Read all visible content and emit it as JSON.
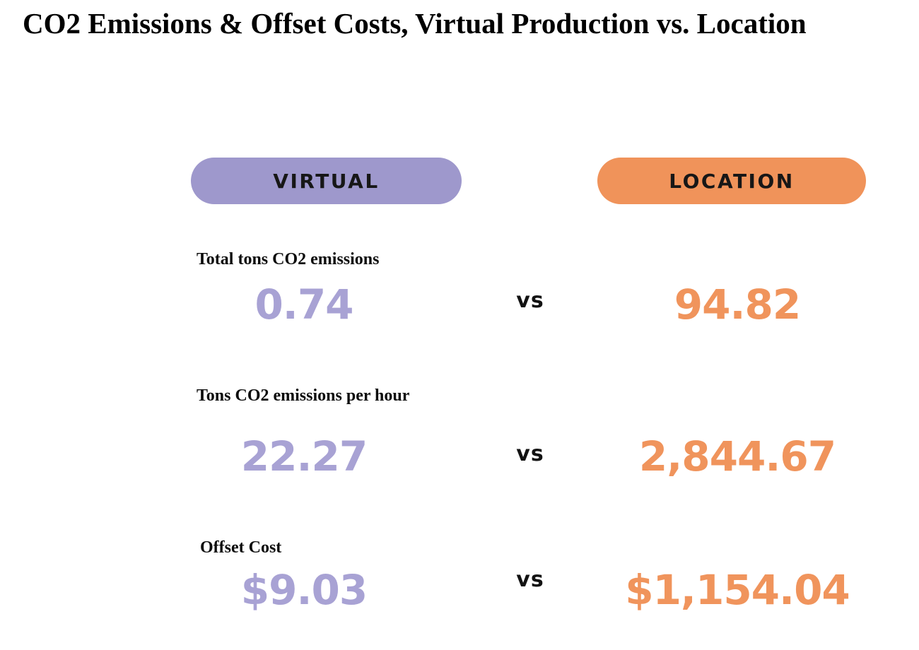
{
  "title": "CO2 Emissions & Offset Costs, Virtual Production vs. Location",
  "columns": {
    "virtual": {
      "label": "VIRTUAL",
      "pill_color": "#9e98cc",
      "value_color": "#a8a2d4"
    },
    "location": {
      "label": "LOCATION",
      "pill_color": "#f0935a",
      "value_color": "#f0945c"
    }
  },
  "vs_label": "vs",
  "rows": [
    {
      "label": "Total tons CO2 emissions",
      "virtual": "0.74",
      "location": "94.82"
    },
    {
      "label": "Tons CO2 emissions per hour",
      "virtual": "22.27",
      "location": "2,844.67"
    },
    {
      "label": "Offset Cost",
      "virtual": "$9.03",
      "location": "$1,154.04"
    }
  ],
  "chart_data": {
    "type": "table",
    "title": "CO2 Emissions & Offset Costs, Virtual Production vs. Location",
    "categories": [
      "Total tons CO2 emissions",
      "Tons CO2 emissions per hour",
      "Offset Cost"
    ],
    "series": [
      {
        "name": "VIRTUAL",
        "values": [
          0.74,
          22.27,
          9.03
        ]
      },
      {
        "name": "LOCATION",
        "values": [
          94.82,
          2844.67,
          1154.04
        ]
      }
    ],
    "value_display": {
      "virtual": [
        "0.74",
        "22.27",
        "$9.03"
      ],
      "location": [
        "94.82",
        "2,844.67",
        "$1,154.04"
      ]
    },
    "units": [
      "tons CO2",
      "tons CO2 per hour",
      "USD"
    ],
    "legend_position": "top"
  }
}
